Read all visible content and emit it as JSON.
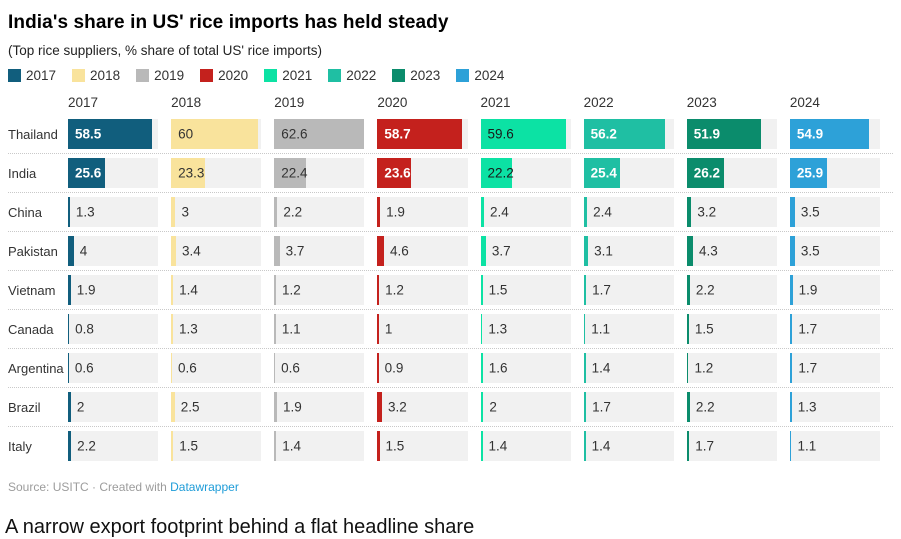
{
  "header": {
    "title": "India's share in US' rice imports has held steady",
    "subtitle": "(Top rice suppliers, % share of total US' rice imports)"
  },
  "chart_data": {
    "type": "bar",
    "layout": "bar-column table: one horizontal bar per country per year, shared scale",
    "title": "India's share in US' rice imports has held steady",
    "subtitle": "(Top rice suppliers, % share of total US' rice imports)",
    "value_unit": "% share of total US rice imports",
    "scale_max": 62.6,
    "grid": false,
    "legend_position": "top",
    "years": [
      {
        "label": "2017",
        "color": "#115e7d",
        "text": "#ffffff"
      },
      {
        "label": "2018",
        "color": "#f9e39c",
        "text": "#333333"
      },
      {
        "label": "2019",
        "color": "#b9b9b9",
        "text": "#333333"
      },
      {
        "label": "2020",
        "color": "#c4211d",
        "text": "#ffffff"
      },
      {
        "label": "2021",
        "color": "#0ce2a4",
        "text": "#1a1a1a"
      },
      {
        "label": "2022",
        "color": "#1fbfa3",
        "text": "#ffffff"
      },
      {
        "label": "2023",
        "color": "#0b8c6c",
        "text": "#ffffff"
      },
      {
        "label": "2024",
        "color": "#2da1d8",
        "text": "#ffffff"
      }
    ],
    "inside_label_min_value": 10,
    "rows": [
      {
        "label": "Thailand",
        "values": [
          58.5,
          60,
          62.6,
          58.7,
          59.6,
          56.2,
          51.9,
          54.9
        ]
      },
      {
        "label": "India",
        "values": [
          25.6,
          23.3,
          22.4,
          23.6,
          22.2,
          25.4,
          26.2,
          25.9
        ]
      },
      {
        "label": "China",
        "values": [
          1.3,
          3,
          2.2,
          1.9,
          2.4,
          2.4,
          3.2,
          3.5
        ]
      },
      {
        "label": "Pakistan",
        "values": [
          4,
          3.4,
          3.7,
          4.6,
          3.7,
          3.1,
          4.3,
          3.5
        ]
      },
      {
        "label": "Vietnam",
        "values": [
          1.9,
          1.4,
          1.2,
          1.2,
          1.5,
          1.7,
          2.2,
          1.9
        ]
      },
      {
        "label": "Canada",
        "values": [
          0.8,
          1.3,
          1.1,
          1,
          1.3,
          1.1,
          1.5,
          1.7
        ]
      },
      {
        "label": "Argentina",
        "values": [
          0.6,
          0.6,
          0.6,
          0.9,
          1.6,
          1.4,
          1.2,
          1.7
        ]
      },
      {
        "label": "Brazil",
        "values": [
          2,
          2.5,
          1.9,
          3.2,
          2,
          1.7,
          2.2,
          1.3
        ]
      },
      {
        "label": "Italy",
        "values": [
          2.2,
          1.5,
          1.4,
          1.5,
          1.4,
          1.4,
          1.7,
          1.1
        ]
      }
    ]
  },
  "footer": {
    "source": "Source: USITC",
    "separator": "·",
    "created_with": "Created with",
    "tool_link": "Datawrapper"
  },
  "caption": "A narrow export footprint behind a flat headline share"
}
